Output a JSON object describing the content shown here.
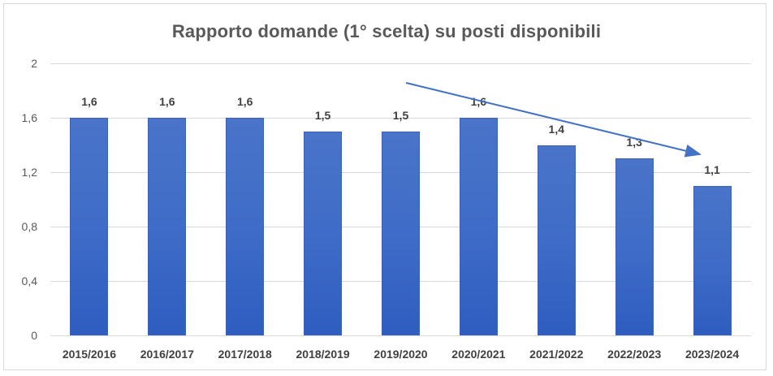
{
  "chart_data": {
    "type": "bar",
    "title": "Rapporto domande (1° scelta) su posti disponibili",
    "xlabel": "",
    "ylabel": "",
    "categories": [
      "2015/2016",
      "2016/2017",
      "2017/2018",
      "2018/2019",
      "2019/2020",
      "2020/2021",
      "2021/2022",
      "2022/2023",
      "2023/2024"
    ],
    "values": [
      1.6,
      1.6,
      1.6,
      1.5,
      1.5,
      1.6,
      1.4,
      1.3,
      1.1
    ],
    "value_labels": [
      "1,6",
      "1,6",
      "1,6",
      "1,5",
      "1,5",
      "1,6",
      "1,4",
      "1,3",
      "1,1"
    ],
    "ylim": [
      0,
      2
    ],
    "yticks": [
      "0",
      "0,4",
      "0,8",
      "1,2",
      "1,6",
      "2"
    ],
    "grid": true,
    "legend": null,
    "bar_color": "#4472C4",
    "annotations": [
      {
        "type": "arrow",
        "description": "downward trend arrow from 2019/2020 to 2023/2024",
        "color": "#4472C4"
      }
    ]
  }
}
